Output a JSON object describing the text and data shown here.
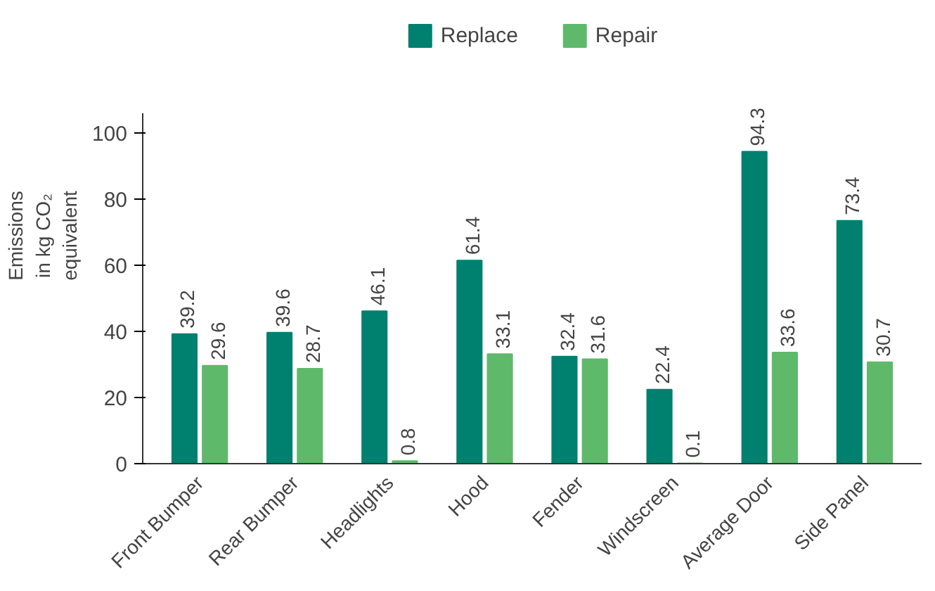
{
  "chart_data": {
    "type": "bar",
    "ylabel": "Emissions in kg CO₂ equivalent",
    "categories": [
      "Front Bumper",
      "Rear Bumper",
      "Headlights",
      "Hood",
      "Fender",
      "Windscreen",
      "Average Door",
      "Side Panel"
    ],
    "series": [
      {
        "name": "Replace",
        "color": "#00806f",
        "values": [
          39.2,
          39.6,
          46.1,
          61.4,
          32.4,
          22.4,
          94.3,
          73.4
        ]
      },
      {
        "name": "Repair",
        "color": "#5fb96b",
        "values": [
          29.6,
          28.7,
          0.8,
          33.1,
          31.6,
          0.1,
          33.6,
          30.7
        ]
      }
    ],
    "ylim": [
      0,
      106
    ],
    "yticks": [
      0,
      20,
      40,
      60,
      80,
      100
    ],
    "grid": false,
    "legend": "top",
    "data_labels": true
  }
}
